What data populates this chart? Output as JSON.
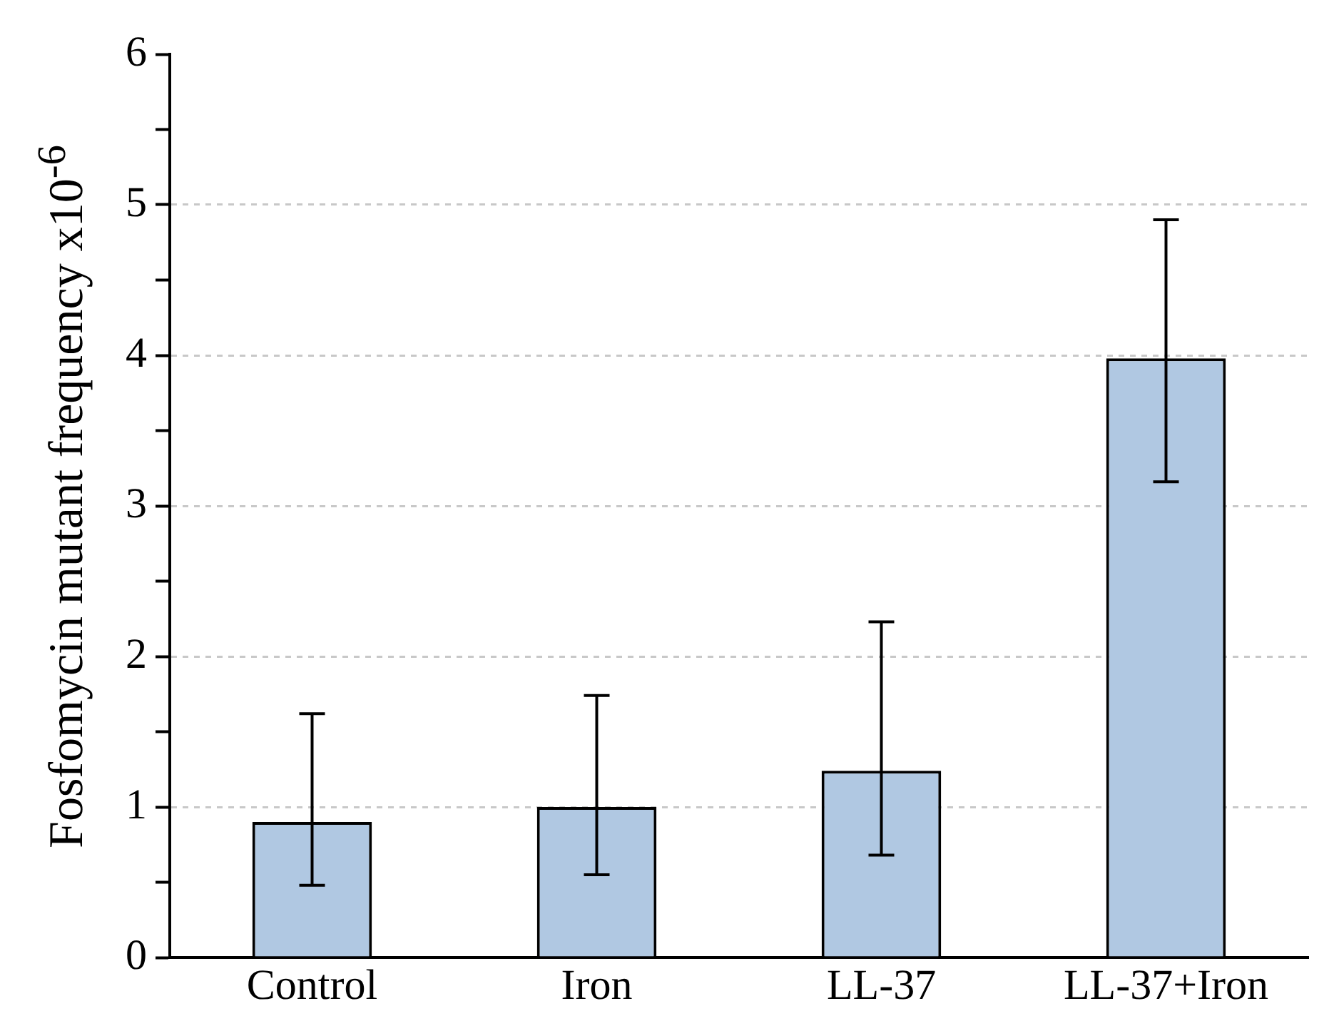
{
  "chart_data": {
    "type": "bar",
    "ylabel": "Fosfomycin mutant frequency x10$^{-6}$",
    "categories": [
      "Control",
      "Iron",
      "LL-37",
      "LL-37+Iron"
    ],
    "values": [
      0.9,
      1.0,
      1.24,
      3.98
    ],
    "errors": [
      [
        0.48,
        1.62
      ],
      [
        0.55,
        1.74
      ],
      [
        0.68,
        2.23
      ],
      [
        3.16,
        4.9
      ]
    ],
    "color": "#b0c8e2",
    "ylim": [
      0,
      6
    ],
    "yticks": [
      0,
      {
        "value": 0.5,
        "label": null
      },
      1,
      {
        "value": 1.5,
        "label": null
      },
      2,
      {
        "value": 2.5,
        "label": null
      },
      3,
      {
        "value": 3.5,
        "label": null
      },
      4,
      {
        "value": 4.5,
        "label": null
      },
      5,
      {
        "value": 5.5,
        "label": null
      },
      6
    ],
    "grid": "y",
    "legend": false
  }
}
